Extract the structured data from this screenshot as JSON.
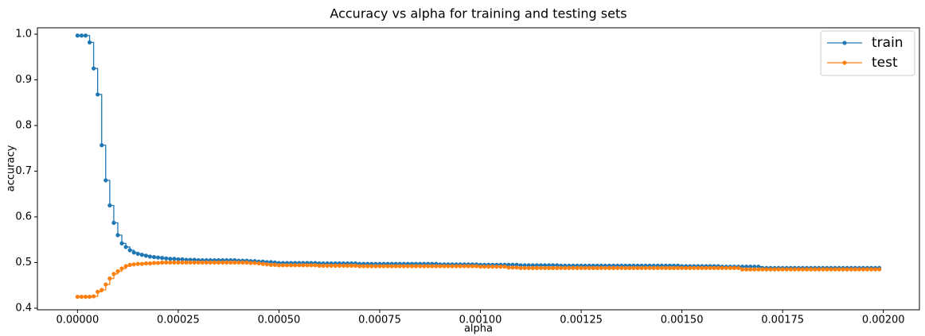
{
  "chart_data": {
    "type": "line",
    "drawstyle": "steps-post",
    "title": "Accuracy vs alpha for training and testing sets",
    "xlabel": "alpha",
    "ylabel": "accuracy",
    "x": [
      0,
      1e-05,
      2e-05,
      3e-05,
      4e-05,
      5e-05,
      6e-05,
      7e-05,
      8e-05,
      9e-05,
      0.0001,
      0.00011,
      0.00012,
      0.00013,
      0.00014,
      0.00015,
      0.00016,
      0.00017,
      0.00018,
      0.00019,
      0.0002,
      0.00021,
      0.00022,
      0.00023,
      0.00024,
      0.00025,
      0.00026,
      0.00027,
      0.00028,
      0.00029,
      0.0003,
      0.00031,
      0.00032,
      0.00033,
      0.00034,
      0.00035,
      0.00036,
      0.00037,
      0.00038,
      0.00039,
      0.0004,
      0.00041,
      0.00042,
      0.00043,
      0.00044,
      0.00045,
      0.00046,
      0.00047,
      0.00048,
      0.00049,
      0.0005,
      0.00051,
      0.00052,
      0.00053,
      0.00054,
      0.00055,
      0.00056,
      0.00057,
      0.00058,
      0.00059,
      0.0006,
      0.00061,
      0.00062,
      0.00063,
      0.00064,
      0.00065,
      0.00066,
      0.00067,
      0.00068,
      0.00069,
      0.0007,
      0.00071,
      0.00072,
      0.00073,
      0.00074,
      0.00075,
      0.00076,
      0.00077,
      0.00078,
      0.00079,
      0.0008,
      0.00081,
      0.00082,
      0.00083,
      0.00084,
      0.00085,
      0.00086,
      0.00087,
      0.00088,
      0.00089,
      0.0009,
      0.00091,
      0.00092,
      0.00093,
      0.00094,
      0.00095,
      0.00096,
      0.00097,
      0.00098,
      0.00099,
      0.001,
      0.00101,
      0.00102,
      0.00103,
      0.00104,
      0.00105,
      0.00106,
      0.00107,
      0.00108,
      0.00109,
      0.0011,
      0.00111,
      0.00112,
      0.00113,
      0.00114,
      0.00115,
      0.00116,
      0.00117,
      0.00118,
      0.00119,
      0.0012,
      0.00121,
      0.00122,
      0.00123,
      0.00124,
      0.00125,
      0.00126,
      0.00127,
      0.00128,
      0.00129,
      0.0013,
      0.00131,
      0.00132,
      0.00133,
      0.00134,
      0.00135,
      0.00136,
      0.00137,
      0.00138,
      0.00139,
      0.0014,
      0.00141,
      0.00142,
      0.00143,
      0.00144,
      0.00145,
      0.00146,
      0.00147,
      0.00148,
      0.00149,
      0.0015,
      0.00151,
      0.00152,
      0.00153,
      0.00154,
      0.00155,
      0.00156,
      0.00157,
      0.00158,
      0.00159,
      0.0016,
      0.00161,
      0.00162,
      0.00163,
      0.00164,
      0.00165,
      0.00166,
      0.00167,
      0.00168,
      0.00169,
      0.0017,
      0.00171,
      0.00172,
      0.00173,
      0.00174,
      0.00175,
      0.00176,
      0.00177,
      0.00178,
      0.00179,
      0.0018,
      0.00181,
      0.00182,
      0.00183,
      0.00184,
      0.00185,
      0.00186,
      0.00187,
      0.00188,
      0.00189,
      0.0019,
      0.00191,
      0.00192,
      0.00193,
      0.00194,
      0.00195,
      0.00196,
      0.00197,
      0.00198,
      0.00199
    ],
    "series": [
      {
        "name": "train",
        "color": "#1f77b4",
        "values": [
          0.997,
          0.997,
          0.997,
          0.982,
          0.925,
          0.868,
          0.757,
          0.68,
          0.625,
          0.587,
          0.56,
          0.542,
          0.534,
          0.527,
          0.522,
          0.519,
          0.517,
          0.515,
          0.513,
          0.512,
          0.511,
          0.51,
          0.509,
          0.508,
          0.508,
          0.507,
          0.507,
          0.506,
          0.506,
          0.506,
          0.505,
          0.505,
          0.505,
          0.505,
          0.505,
          0.505,
          0.505,
          0.505,
          0.505,
          0.505,
          0.504,
          0.504,
          0.504,
          0.503,
          0.503,
          0.502,
          0.502,
          0.501,
          0.501,
          0.5,
          0.499,
          0.499,
          0.499,
          0.499,
          0.499,
          0.499,
          0.499,
          0.499,
          0.499,
          0.499,
          0.498,
          0.498,
          0.498,
          0.498,
          0.498,
          0.498,
          0.498,
          0.498,
          0.498,
          0.498,
          0.497,
          0.497,
          0.497,
          0.497,
          0.497,
          0.497,
          0.497,
          0.497,
          0.497,
          0.497,
          0.497,
          0.497,
          0.497,
          0.497,
          0.497,
          0.497,
          0.497,
          0.497,
          0.497,
          0.497,
          0.496,
          0.496,
          0.496,
          0.496,
          0.496,
          0.496,
          0.496,
          0.496,
          0.496,
          0.496,
          0.495,
          0.495,
          0.495,
          0.495,
          0.495,
          0.495,
          0.495,
          0.495,
          0.495,
          0.495,
          0.494,
          0.494,
          0.494,
          0.494,
          0.494,
          0.494,
          0.494,
          0.494,
          0.494,
          0.494,
          0.493,
          0.493,
          0.493,
          0.493,
          0.493,
          0.493,
          0.493,
          0.493,
          0.493,
          0.493,
          0.493,
          0.493,
          0.493,
          0.493,
          0.493,
          0.493,
          0.493,
          0.493,
          0.493,
          0.493,
          0.493,
          0.493,
          0.493,
          0.493,
          0.493,
          0.493,
          0.493,
          0.493,
          0.493,
          0.493,
          0.492,
          0.492,
          0.492,
          0.492,
          0.492,
          0.492,
          0.492,
          0.492,
          0.492,
          0.492,
          0.491,
          0.491,
          0.491,
          0.491,
          0.491,
          0.491,
          0.491,
          0.491,
          0.491,
          0.491,
          0.488,
          0.488,
          0.488,
          0.488,
          0.488,
          0.488,
          0.488,
          0.488,
          0.488,
          0.488,
          0.488,
          0.488,
          0.488,
          0.488,
          0.488,
          0.488,
          0.488,
          0.488,
          0.488,
          0.488,
          0.488,
          0.488,
          0.488,
          0.488,
          0.488,
          0.488,
          0.488,
          0.488,
          0.488,
          0.488
        ]
      },
      {
        "name": "test",
        "color": "#ff7f0e",
        "values": [
          0.425,
          0.425,
          0.425,
          0.425,
          0.426,
          0.436,
          0.44,
          0.452,
          0.465,
          0.475,
          0.481,
          0.487,
          0.492,
          0.495,
          0.496,
          0.497,
          0.497,
          0.498,
          0.498,
          0.499,
          0.499,
          0.5,
          0.5,
          0.5,
          0.5,
          0.5,
          0.5,
          0.5,
          0.5,
          0.5,
          0.5,
          0.5,
          0.5,
          0.5,
          0.5,
          0.5,
          0.5,
          0.5,
          0.5,
          0.5,
          0.5,
          0.5,
          0.5,
          0.499,
          0.499,
          0.498,
          0.497,
          0.496,
          0.495,
          0.495,
          0.494,
          0.494,
          0.494,
          0.494,
          0.494,
          0.494,
          0.494,
          0.494,
          0.494,
          0.494,
          0.493,
          0.493,
          0.493,
          0.493,
          0.493,
          0.493,
          0.493,
          0.493,
          0.493,
          0.493,
          0.492,
          0.492,
          0.492,
          0.492,
          0.492,
          0.492,
          0.492,
          0.492,
          0.492,
          0.492,
          0.492,
          0.492,
          0.492,
          0.492,
          0.492,
          0.492,
          0.492,
          0.492,
          0.492,
          0.492,
          0.492,
          0.492,
          0.492,
          0.492,
          0.492,
          0.492,
          0.492,
          0.492,
          0.492,
          0.492,
          0.491,
          0.491,
          0.491,
          0.491,
          0.491,
          0.491,
          0.491,
          0.489,
          0.489,
          0.489,
          0.488,
          0.488,
          0.488,
          0.488,
          0.488,
          0.488,
          0.488,
          0.488,
          0.488,
          0.488,
          0.488,
          0.488,
          0.488,
          0.488,
          0.488,
          0.488,
          0.488,
          0.488,
          0.488,
          0.488,
          0.488,
          0.488,
          0.488,
          0.488,
          0.488,
          0.488,
          0.488,
          0.488,
          0.488,
          0.488,
          0.488,
          0.488,
          0.488,
          0.488,
          0.488,
          0.488,
          0.488,
          0.488,
          0.488,
          0.488,
          0.488,
          0.488,
          0.488,
          0.488,
          0.488,
          0.488,
          0.488,
          0.488,
          0.488,
          0.488,
          0.488,
          0.488,
          0.488,
          0.488,
          0.488,
          0.485,
          0.485,
          0.485,
          0.485,
          0.485,
          0.485,
          0.485,
          0.485,
          0.485,
          0.485,
          0.485,
          0.485,
          0.485,
          0.485,
          0.485,
          0.485,
          0.485,
          0.485,
          0.485,
          0.485,
          0.485,
          0.485,
          0.485,
          0.485,
          0.485,
          0.485,
          0.485,
          0.485,
          0.485,
          0.485,
          0.485,
          0.485,
          0.485,
          0.485,
          0.485
        ]
      }
    ],
    "xlim": [
      -9.95e-05,
      0.0020895
    ],
    "xticks": [
      {
        "value": 0,
        "label": "0.00000"
      },
      {
        "value": 0.00025,
        "label": "0.00025"
      },
      {
        "value": 0.0005,
        "label": "0.00050"
      },
      {
        "value": 0.00075,
        "label": "0.00075"
      },
      {
        "value": 0.001,
        "label": "0.00100"
      },
      {
        "value": 0.00125,
        "label": "0.00125"
      },
      {
        "value": 0.0015,
        "label": "0.00150"
      },
      {
        "value": 0.00175,
        "label": "0.00175"
      },
      {
        "value": 0.002,
        "label": "0.00200"
      }
    ],
    "ylim": [
      0.3965,
      1.014
    ],
    "yticks": [
      0.4,
      0.5,
      0.6,
      0.7,
      0.8,
      0.9,
      {
        "value": 1.0,
        "label": "1.0"
      }
    ],
    "grid": false,
    "legend": "upper right"
  }
}
